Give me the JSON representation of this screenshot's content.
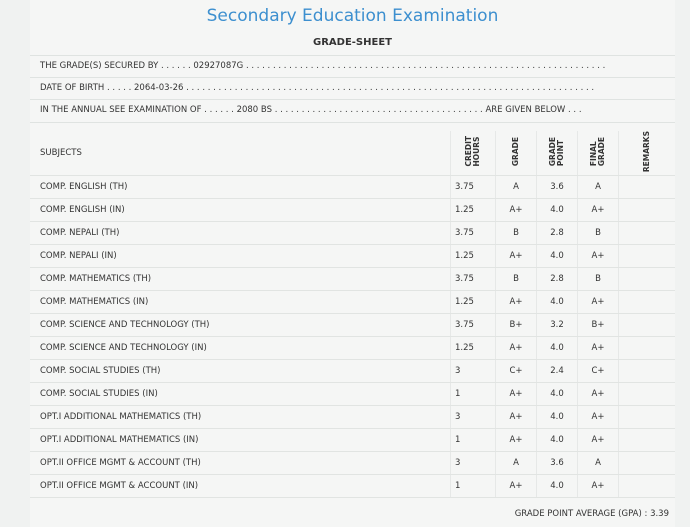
{
  "header": {
    "title": "Secondary Education Examination",
    "subtitle": "GRADE-SHEET"
  },
  "info": {
    "line1": "THE GRADE(S) SECURED BY . . . . . .  02927087G . . . . . . . . . . . . . . . . . . . . . . . . . . . . . . . . . . . . . . . . . . . . . . . . . . . . . . . . . . . . . . . . . . .",
    "line2": "DATE OF BIRTH . . . . .  2064-03-26 . . . . . . . . . . . . . . . . . . . . . . . . . . . . . . . . . . . . . . . . . . . . . . . . . . . . . . . . . . . . . . . . . . . . . . . . . . . .",
    "line3": "IN THE ANNUAL SEE EXAMINATION OF . . . . . .  2080 BS . . . . . . . . . . . . . . . . . . . . . . . . . . . . . . . . . . . . . . .  ARE GIVEN BELOW . . ."
  },
  "table": {
    "headers": {
      "subjects": "SUBJECTS",
      "credit": "CREDIT\nHOURS",
      "grade": "GRADE",
      "point": "GRADE\nPOINT",
      "final": "FINAL\nGRADE",
      "remarks": "REMARKS"
    },
    "rows": [
      {
        "subject": "COMP. ENGLISH (TH)",
        "credit": "3.75",
        "grade": "A",
        "point": "3.6",
        "final": "A"
      },
      {
        "subject": "COMP. ENGLISH (IN)",
        "credit": "1.25",
        "grade": "A+",
        "point": "4.0",
        "final": "A+"
      },
      {
        "subject": "COMP. NEPALI (TH)",
        "credit": "3.75",
        "grade": "B",
        "point": "2.8",
        "final": "B"
      },
      {
        "subject": "COMP. NEPALI (IN)",
        "credit": "1.25",
        "grade": "A+",
        "point": "4.0",
        "final": "A+"
      },
      {
        "subject": "COMP. MATHEMATICS (TH)",
        "credit": "3.75",
        "grade": "B",
        "point": "2.8",
        "final": "B"
      },
      {
        "subject": "COMP. MATHEMATICS (IN)",
        "credit": "1.25",
        "grade": "A+",
        "point": "4.0",
        "final": "A+"
      },
      {
        "subject": "COMP. SCIENCE AND TECHNOLOGY (TH)",
        "credit": "3.75",
        "grade": "B+",
        "point": "3.2",
        "final": "B+"
      },
      {
        "subject": "COMP. SCIENCE AND TECHNOLOGY (IN)",
        "credit": "1.25",
        "grade": "A+",
        "point": "4.0",
        "final": "A+"
      },
      {
        "subject": "COMP. SOCIAL STUDIES (TH)",
        "credit": "3",
        "grade": "C+",
        "point": "2.4",
        "final": "C+"
      },
      {
        "subject": "COMP. SOCIAL STUDIES (IN)",
        "credit": "1",
        "grade": "A+",
        "point": "4.0",
        "final": "A+"
      },
      {
        "subject": "OPT.I ADDITIONAL MATHEMATICS (TH)",
        "credit": "3",
        "grade": "A+",
        "point": "4.0",
        "final": "A+"
      },
      {
        "subject": "OPT.I ADDITIONAL MATHEMATICS (IN)",
        "credit": "1",
        "grade": "A+",
        "point": "4.0",
        "final": "A+"
      },
      {
        "subject": "OPT.II OFFICE MGMT & ACCOUNT (TH)",
        "credit": "3",
        "grade": "A",
        "point": "3.6",
        "final": "A"
      },
      {
        "subject": "OPT.II OFFICE MGMT & ACCOUNT (IN)",
        "credit": "1",
        "grade": "A+",
        "point": "4.0",
        "final": "A+"
      }
    ]
  },
  "gpa": "GRADE POINT AVERAGE (GPA) : 3.39"
}
